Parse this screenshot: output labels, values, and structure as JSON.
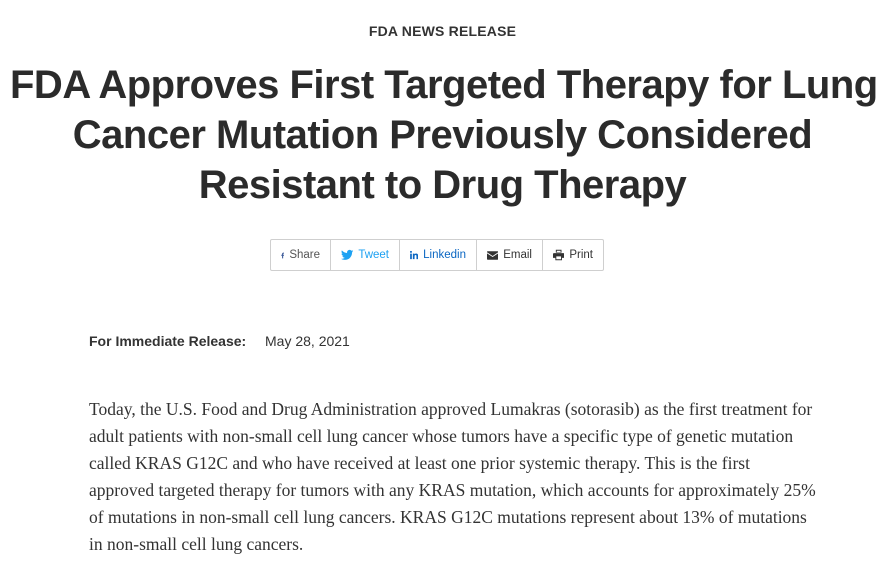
{
  "kicker": "FDA NEWS RELEASE",
  "headline": {
    "line1": "FDA Approves First Targeted Therapy for Lung",
    "line2": "Cancer Mutation Previously Considered",
    "line3": "Resistant to Drug Therapy"
  },
  "share_bar": {
    "items": [
      {
        "label": "Share",
        "icon": "facebook-icon"
      },
      {
        "label": "Tweet",
        "icon": "twitter-icon"
      },
      {
        "label": "Linkedin",
        "icon": "linkedin-icon"
      },
      {
        "label": "Email",
        "icon": "envelope-icon"
      },
      {
        "label": "Print",
        "icon": "printer-icon"
      }
    ],
    "colors": {
      "facebook": "#3b5998",
      "twitter": "#1da1f2",
      "linkedin": "#0a66c2",
      "border": "#cfcfcf"
    }
  },
  "release": {
    "label": "For Immediate Release:",
    "date": "May 28, 2021"
  },
  "body": {
    "paragraph": "Today, the U.S. Food and Drug Administration approved Lumakras (sotorasib) as the first treatment for adult patients with non-small cell lung cancer whose tumors have a specific type of genetic mutation called KRAS G12C and who have received at least one prior systemic therapy. This is the first approved targeted therapy for tumors with any KRAS mutation, which accounts for approximately 25% of mutations in non-small cell lung cancers. KRAS G12C mutations represent about 13% of mutations in non-small cell lung cancers."
  }
}
